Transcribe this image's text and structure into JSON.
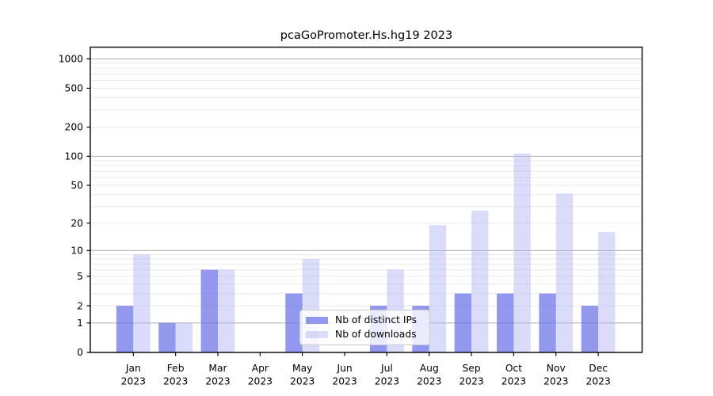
{
  "chart_data": {
    "type": "bar",
    "title": "pcaGoPromoter.Hs.hg19 2023",
    "categories": [
      "Jan",
      "Feb",
      "Mar",
      "Apr",
      "May",
      "Jun",
      "Jul",
      "Aug",
      "Sep",
      "Oct",
      "Nov",
      "Dec"
    ],
    "year_label": "2023",
    "series": [
      {
        "name": "Nb of distinct IPs",
        "color": "#6970e9",
        "opacity": 0.72,
        "values": [
          2,
          1,
          6,
          0,
          3,
          0,
          2,
          2,
          3,
          3,
          3,
          2
        ]
      },
      {
        "name": "Nb of downloads",
        "color": "#b2b4f2",
        "opacity": 0.47,
        "values": [
          9,
          1,
          6,
          0,
          8,
          0,
          6,
          19,
          27,
          107,
          41,
          16
        ]
      }
    ],
    "xlabel": "",
    "ylabel": "",
    "y_axis": {
      "scale": "log1p",
      "tick_values": [
        0,
        1,
        2,
        5,
        10,
        20,
        50,
        100,
        200,
        500,
        1000
      ],
      "ylim": [
        0,
        1200
      ]
    },
    "grid": {
      "on": true,
      "major_color": "#b2b2b2",
      "minor_color": "#e9e9e9"
    },
    "legend": {
      "position": "lower-center",
      "border_color": "#c9c9c9"
    }
  }
}
